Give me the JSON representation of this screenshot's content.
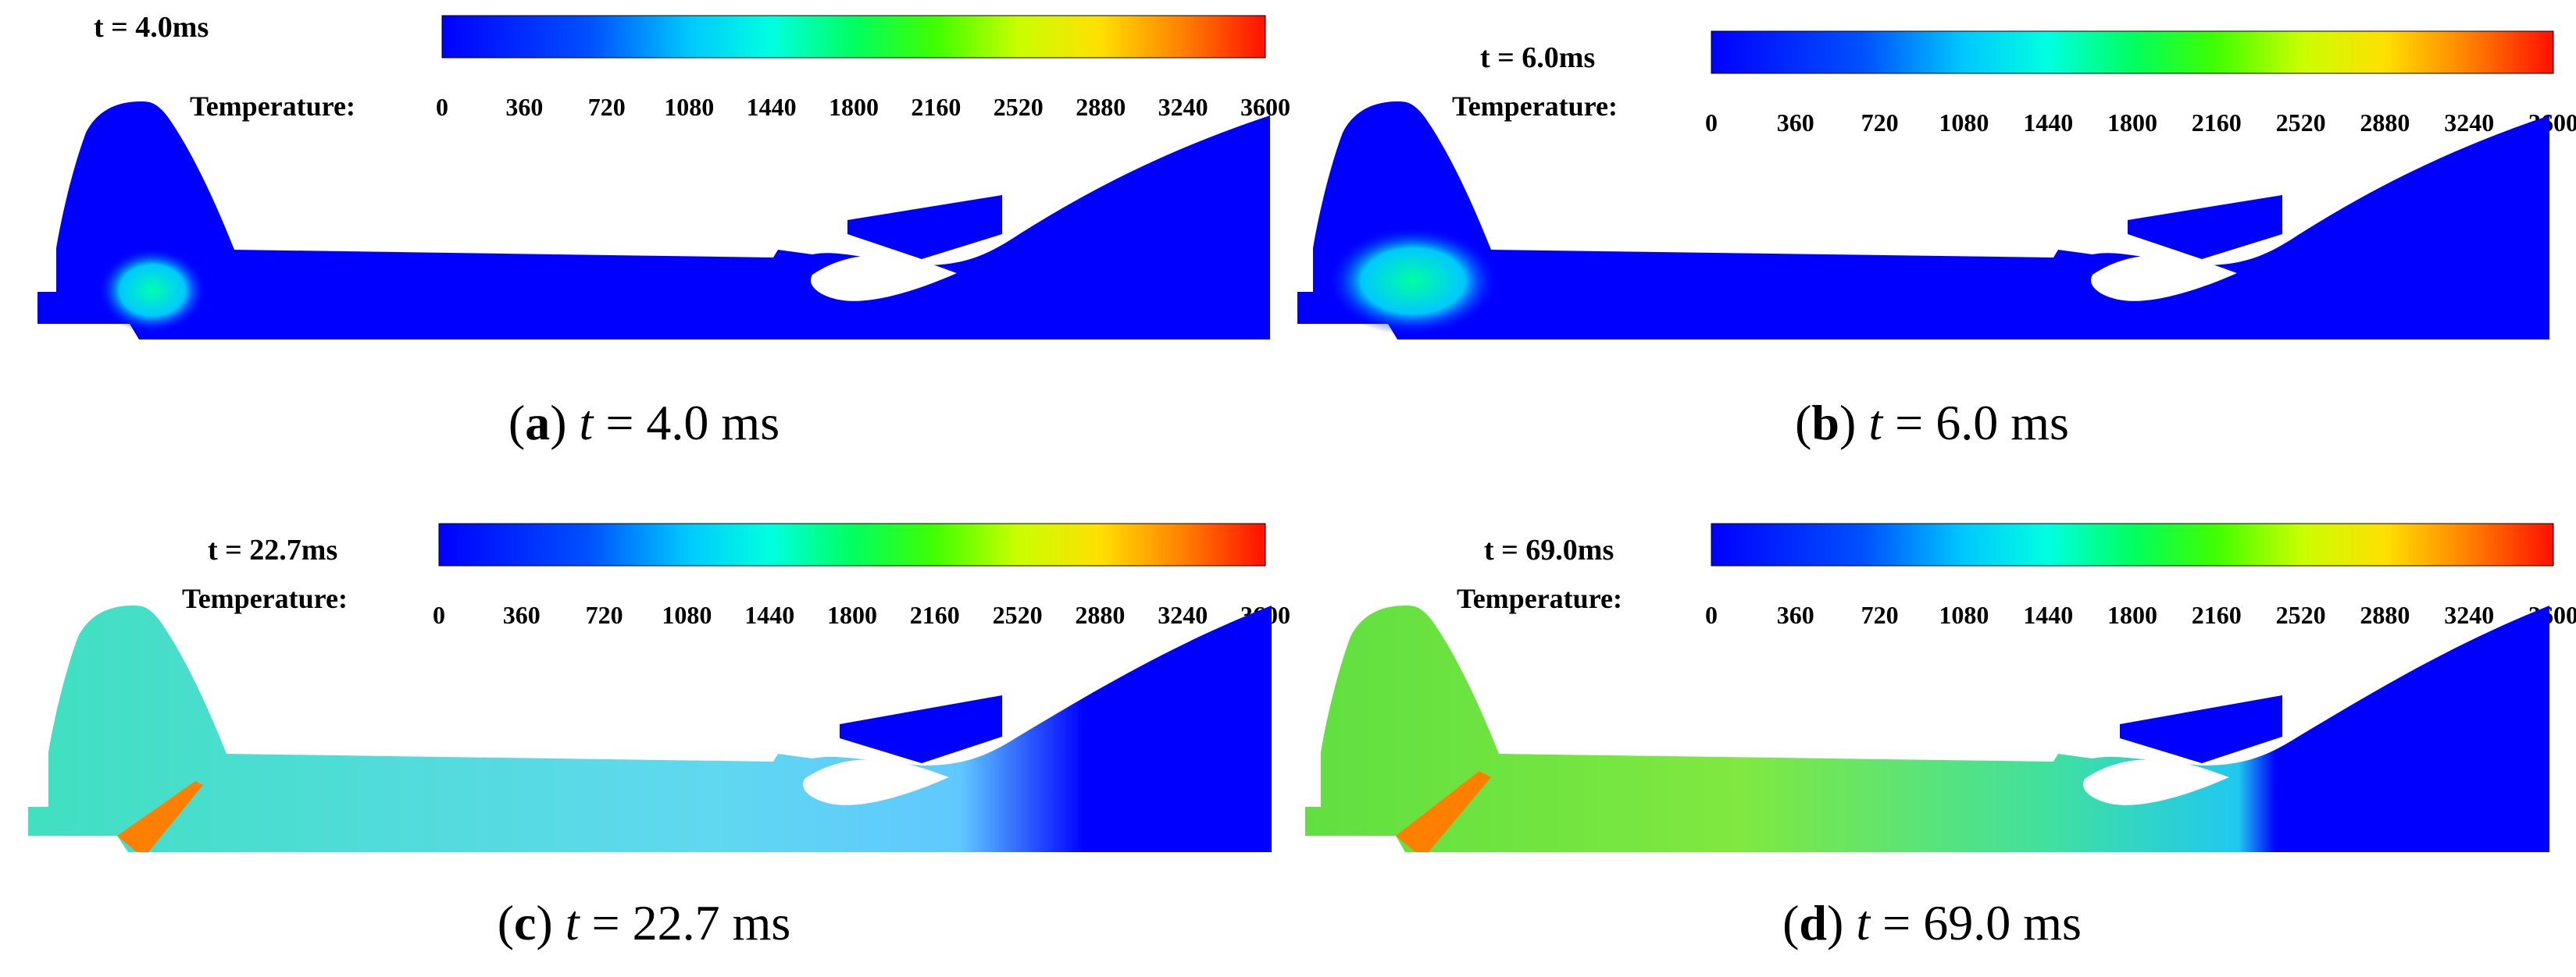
{
  "colorbar": {
    "title": "Temperature:",
    "ticks": [
      "0",
      "360",
      "720",
      "1080",
      "1440",
      "1800",
      "2160",
      "2520",
      "2880",
      "3240",
      "3600"
    ],
    "colors": [
      "#0000ff",
      "#0050ff",
      "#00b4ff",
      "#00ffff",
      "#00ff96",
      "#00ff00",
      "#96ff00",
      "#ffff00",
      "#ffb400",
      "#ff5a00",
      "#ff0000"
    ]
  },
  "panels": [
    {
      "time_label": "t = 4.0ms",
      "caption_letter": "a",
      "caption_t": "t",
      "caption_rest": " = 4.0 ms"
    },
    {
      "time_label": "t = 6.0ms",
      "caption_letter": "b",
      "caption_t": "t",
      "caption_rest": " = 6.0 ms"
    },
    {
      "time_label": "t = 22.7ms",
      "caption_letter": "c",
      "caption_t": "t",
      "caption_rest": " = 22.7 ms"
    },
    {
      "time_label": "t = 69.0ms",
      "caption_letter": "d",
      "caption_t": "t",
      "caption_rest": " = 69.0 ms"
    }
  ]
}
